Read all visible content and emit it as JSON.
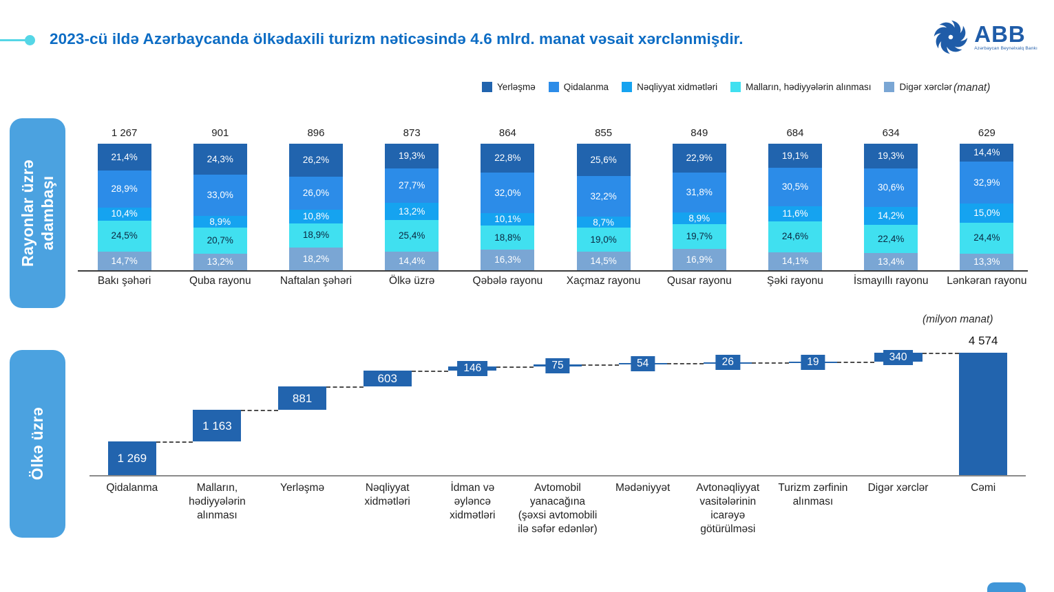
{
  "header": {
    "title": "2023-cü ildə Azərbaycanda ölkədaxili turizm nəticəsində 4.6 mlrd. manat vəsait xərclənmişdir.",
    "logo": {
      "name": "ABB",
      "subtitle": "Azərbaycan Beynəlxalq Bankı"
    }
  },
  "legend": {
    "unit_label": "(manat)",
    "items": [
      {
        "label": "Yerləşmə",
        "color": "#2164ae"
      },
      {
        "label": "Qidalanma",
        "color": "#2c8ce8"
      },
      {
        "label": "Nəqliyyat xidmətləri",
        "color": "#15a3f0"
      },
      {
        "label": "Malların, hədiyyələrin alınması",
        "color": "#40e0f0"
      },
      {
        "label": "Digər xərclər",
        "color": "#7aa6d4"
      }
    ]
  },
  "sections": [
    {
      "label": "Rayonlar üzrə\nadambaşı"
    },
    {
      "label": "Ölkə üzrə"
    }
  ],
  "chart_data": [
    {
      "type": "bar",
      "subtype": "stacked-100-percent",
      "title": "Rayonlar üzrə adambaşı",
      "unit_label": "(manat)",
      "ylim": [
        0,
        100
      ],
      "grid": false,
      "legend_position": "top",
      "categories": [
        "Bakı şəhəri",
        "Quba rayonu",
        "Naftalan şəhəri",
        "Ölkə üzrə",
        "Qəbələ rayonu",
        "Xaçmaz rayonu",
        "Qusar rayonu",
        "Şəki rayonu",
        "İsmayıllı rayonu",
        "Lənkəran rayonu"
      ],
      "totals_display": [
        "1 267",
        "901",
        "896",
        "873",
        "864",
        "855",
        "849",
        "684",
        "634",
        "629"
      ],
      "totals": [
        1267,
        901,
        896,
        873,
        864,
        855,
        849,
        684,
        634,
        629
      ],
      "series": [
        {
          "name": "Yerləşmə",
          "color": "#2164ae",
          "label_color": "#ffffff",
          "values": [
            21.4,
            24.3,
            26.2,
            19.3,
            22.8,
            25.6,
            22.9,
            19.1,
            19.3,
            14.4
          ],
          "labels": [
            "21,4%",
            "24,3%",
            "26,2%",
            "19,3%",
            "22,8%",
            "25,6%",
            "22,9%",
            "19,1%",
            "19,3%",
            "14,4%"
          ]
        },
        {
          "name": "Qidalanma",
          "color": "#2c8ce8",
          "label_color": "#ffffff",
          "values": [
            28.9,
            33.0,
            26.0,
            27.7,
            32.0,
            32.2,
            31.8,
            30.5,
            30.6,
            32.9
          ],
          "labels": [
            "28,9%",
            "33,0%",
            "26,0%",
            "27,7%",
            "32,0%",
            "32,2%",
            "31,8%",
            "30,5%",
            "30,6%",
            "32,9%"
          ]
        },
        {
          "name": "Nəqliyyat xidmətləri",
          "color": "#15a3f0",
          "label_color": "#ffffff",
          "values": [
            10.4,
            8.9,
            10.8,
            13.2,
            10.1,
            8.7,
            8.9,
            11.6,
            14.2,
            15.0
          ],
          "labels": [
            "10,4%",
            "8,9%",
            "10,8%",
            "13,2%",
            "10,1%",
            "8,7%",
            "8,9%",
            "11,6%",
            "14,2%",
            "15,0%"
          ]
        },
        {
          "name": "Malların, hədiyyələrin alınması",
          "color": "#40e0f0",
          "label_color": "#0b2740",
          "values": [
            24.5,
            20.7,
            18.9,
            25.4,
            18.8,
            19.0,
            19.7,
            24.6,
            22.4,
            24.4
          ],
          "labels": [
            "24,5%",
            "20,7%",
            "18,9%",
            "25,4%",
            "18,8%",
            "19,0%",
            "19,7%",
            "24,6%",
            "22,4%",
            "24,4%"
          ]
        },
        {
          "name": "Digər xərclər",
          "color": "#7aa6d4",
          "label_color": "#ffffff",
          "values": [
            14.7,
            13.2,
            18.2,
            14.4,
            16.3,
            14.5,
            16.9,
            14.1,
            13.4,
            13.3
          ],
          "labels": [
            "14,7%",
            "13,2%",
            "18,2%",
            "14,4%",
            "16,3%",
            "14,5%",
            "16,9%",
            "14,1%",
            "13,4%",
            "13,3%"
          ]
        }
      ]
    },
    {
      "type": "bar",
      "subtype": "waterfall",
      "title": "Ölkə üzrə",
      "unit_label": "(milyon manat)",
      "ylim": [
        0,
        4576
      ],
      "grid": false,
      "bar_color": "#2264ae",
      "categories": [
        "Qidalanma",
        "Malların,\nhədiyyələrin\nalınması",
        "Yerləşmə",
        "Nəqliyyat\nxidmətləri",
        "İdman və\nəyləncə\nxidmətləri",
        "Avtomobil\nyanacağına\n(şəxsi avtomobili\nilə səfər edənlər)",
        "Mədəniyyət",
        "Avtonəqliyyat\nvasitələrinin\nicarəyə\ngötürülməsi",
        "Turizm zərfinin\nalınması",
        "Digər xərclər",
        "Cəmi"
      ],
      "values": [
        1269,
        1163,
        881,
        603,
        146,
        75,
        54,
        26,
        19,
        340
      ],
      "values_display": [
        "1 269",
        "1 163",
        "881",
        "603",
        "146",
        "75",
        "54",
        "26",
        "19",
        "340"
      ],
      "total": {
        "label": "Cəmi",
        "value": 4574,
        "display": "4 574"
      }
    }
  ]
}
